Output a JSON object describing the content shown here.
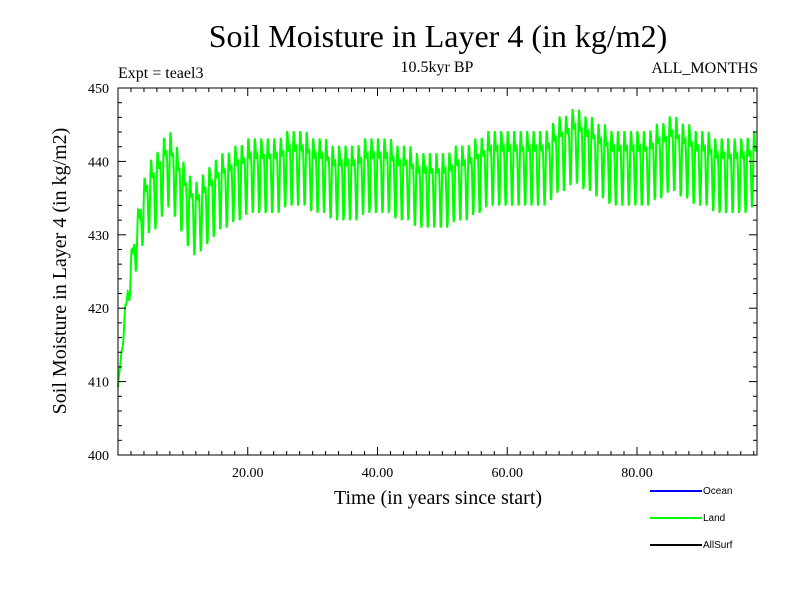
{
  "chart_data": {
    "type": "line",
    "title": "Soil Moisture in Layer 4 (in kg/m2)",
    "subtitle_left": "Expt = teael3",
    "subtitle_center": "10.5kyr BP",
    "subtitle_right": "ALL_MONTHS",
    "xlabel": "Time (in years since start)",
    "ylabel": "Soil Moisture in Layer 4 (in kg/m2)",
    "xlim": [
      0,
      98.5
    ],
    "ylim": [
      400,
      450
    ],
    "x_ticks": [
      20,
      40,
      60,
      80
    ],
    "x_tick_labels": [
      "20.00",
      "40.00",
      "60.00",
      "80.00"
    ],
    "y_ticks": [
      400,
      410,
      420,
      430,
      440,
      450
    ],
    "y_tick_labels": [
      "400",
      "410",
      "420",
      "430",
      "440",
      "450"
    ],
    "legend": [
      {
        "name": "Ocean",
        "color": "#0000ff"
      },
      {
        "name": "Land",
        "color": "#00ff00"
      },
      {
        "name": "AllSurf",
        "color": "#000000"
      }
    ],
    "series": [
      {
        "name": "Land",
        "color": "#00ff00",
        "x_start": 0,
        "x_step": 0.0833,
        "baseline": [
          409,
          418,
          425,
          430,
          434,
          436,
          437,
          439,
          440,
          438,
          436,
          434,
          433,
          434,
          435,
          436,
          437,
          437,
          438,
          438,
          439,
          439,
          439,
          439,
          439,
          439,
          440,
          440,
          440,
          440,
          439,
          439,
          439,
          438,
          438,
          438,
          438,
          438,
          439,
          439,
          439,
          439,
          439,
          438,
          438,
          438,
          437,
          437,
          437,
          437,
          437,
          437,
          438,
          438,
          438,
          439,
          439,
          440,
          440,
          440,
          440,
          440,
          440,
          440,
          440,
          440,
          440,
          441,
          442,
          442,
          443,
          443,
          442,
          442,
          441,
          441,
          440,
          440,
          440,
          440,
          440,
          440,
          440,
          441,
          441,
          442,
          442,
          441,
          441,
          440,
          440,
          440,
          439,
          439,
          439,
          439,
          439,
          439,
          440
        ],
        "seasonal_amplitude": [
          0.5,
          1.5,
          2.5,
          3,
          3.5,
          4,
          4,
          4,
          4,
          4,
          4,
          4,
          4,
          4,
          4,
          4,
          4,
          4,
          4,
          4,
          4,
          4,
          4,
          4,
          4,
          4,
          4,
          4,
          4,
          4,
          4,
          4,
          4,
          4,
          4,
          4,
          4,
          4,
          4,
          4,
          4,
          4,
          4,
          4,
          4,
          4,
          4,
          4,
          4,
          4,
          4,
          4,
          4,
          4,
          4,
          4,
          4,
          4,
          4,
          4,
          4,
          4,
          4,
          4,
          4,
          4,
          4,
          4,
          4,
          4,
          4,
          4,
          4,
          4,
          4,
          4,
          4,
          4,
          4,
          4,
          4,
          4,
          4,
          4,
          4,
          4,
          4,
          4,
          4,
          4,
          4,
          4,
          4,
          4,
          4,
          4,
          4,
          4,
          4
        ]
      }
    ]
  }
}
